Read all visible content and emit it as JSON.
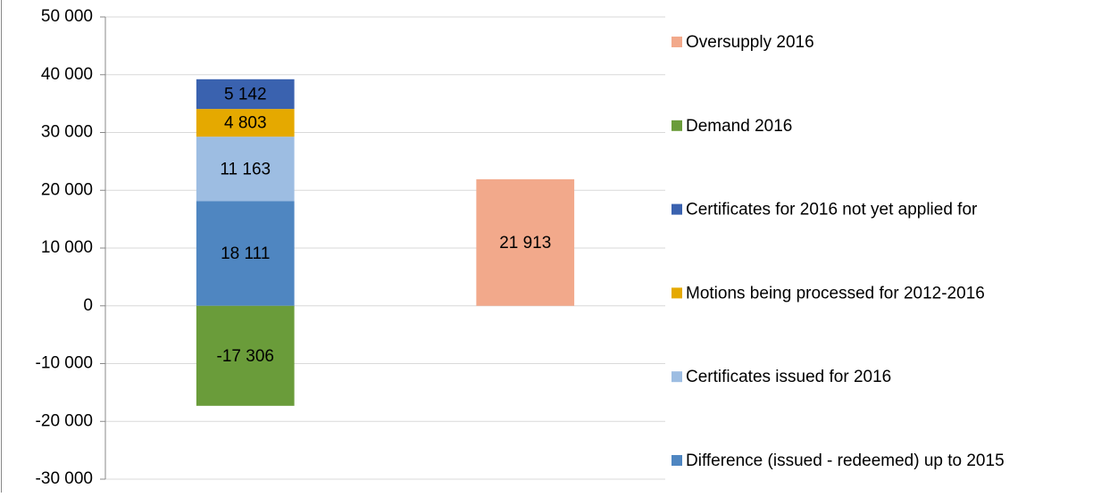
{
  "chart_data": {
    "type": "stacked_bar",
    "categories": [
      null,
      null
    ],
    "series": [
      {
        "name": "Difference (issued - redeemed) up to 2015",
        "color": "#4f86c1",
        "values": [
          18111,
          null
        ],
        "value_labels": [
          "18 111",
          null
        ]
      },
      {
        "name": "Certificates issued for 2016",
        "color": "#9dbde2",
        "values": [
          11163,
          null
        ],
        "value_labels": [
          "11 163",
          null
        ]
      },
      {
        "name": "Motions being processed for 2012-2016",
        "color": "#e5a900",
        "values": [
          4803,
          null
        ],
        "value_labels": [
          "4 803",
          null
        ]
      },
      {
        "name": "Certificates for 2016 not yet applied for",
        "color": "#3a62af",
        "values": [
          5142,
          null
        ],
        "value_labels": [
          "5 142",
          null
        ]
      },
      {
        "name": "Demand 2016",
        "color": "#6a9c3a",
        "values": [
          -17306,
          null
        ],
        "value_labels": [
          "-17 306",
          null
        ]
      },
      {
        "name": "Oversupply 2016",
        "color": "#f2a98b",
        "values": [
          null,
          21913
        ],
        "value_labels": [
          null,
          "21 913"
        ]
      }
    ],
    "ylim": [
      -30000,
      50000
    ],
    "yticks": [
      {
        "value": -30000,
        "label": "-30 000"
      },
      {
        "value": -20000,
        "label": "-20 000"
      },
      {
        "value": -10000,
        "label": "-10 000"
      },
      0,
      {
        "value": 10000,
        "label": "10 000"
      },
      {
        "value": 20000,
        "label": "20 000"
      },
      {
        "value": 30000,
        "label": "30 000"
      },
      {
        "value": 40000,
        "label": "40 000"
      },
      {
        "value": 50000,
        "label": "50 000"
      }
    ],
    "grid": true,
    "legend": "right"
  }
}
